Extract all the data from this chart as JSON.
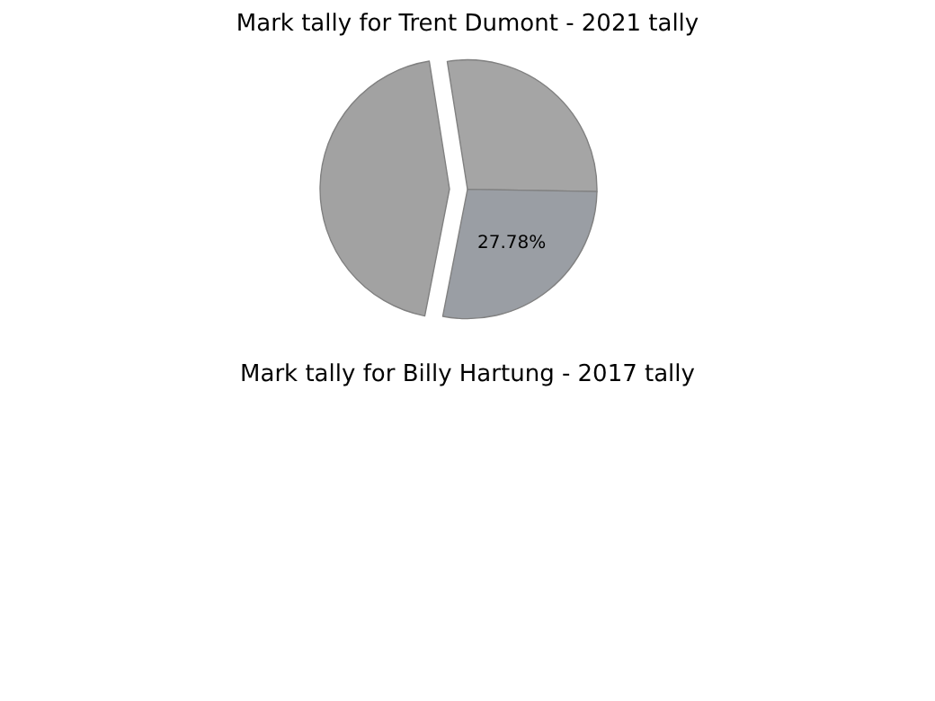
{
  "chart_data": [
    {
      "type": "pie",
      "title": "Mark tally for Trent Dumont - 2021 tally",
      "categories": [
        null,
        null,
        null
      ],
      "values": [
        27.78,
        27.78,
        44.44
      ],
      "colors": [
        "#a5a5a5",
        "#9a9ea4",
        "#a2a2a2"
      ],
      "value_labels": [
        null,
        "27.78%",
        null
      ]
    },
    {
      "type": "other",
      "title": "Mark tally for Billy Hartung - 2017 tally"
    }
  ]
}
